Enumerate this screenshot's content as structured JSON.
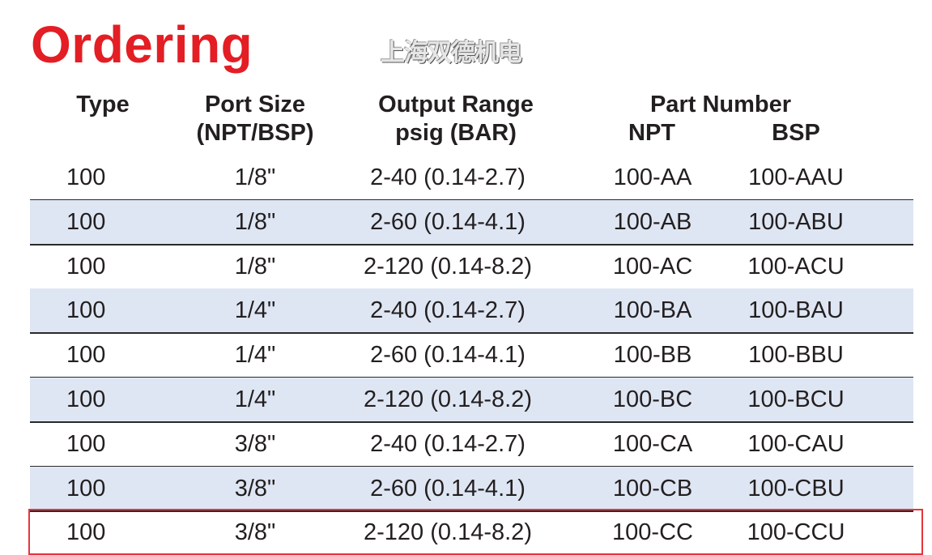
{
  "title": "Ordering",
  "headers": {
    "type": "Type",
    "port_size": "Port Size",
    "port_size_sub": "(NPT/BSP)",
    "output_range": "Output Range",
    "output_range_sub": "psig (BAR)",
    "part_number": "Part Number",
    "npt": "NPT",
    "bsp": "BSP"
  },
  "rows": [
    [
      "100",
      "1/8\"",
      "2-40 (0.14-2.7)",
      "100-AA",
      "100-AAU"
    ],
    [
      "100",
      "1/8\"",
      "2-60 (0.14-4.1)",
      "100-AB",
      "100-ABU"
    ],
    [
      "100",
      "1/8\"",
      "2-120 (0.14-8.2)",
      "100-AC",
      "100-ACU"
    ],
    [
      "100",
      "1/4\"",
      "2-40 (0.14-2.7)",
      "100-BA",
      "100-BAU"
    ],
    [
      "100",
      "1/4\"",
      "2-60 (0.14-4.1)",
      "100-BB",
      "100-BBU"
    ],
    [
      "100",
      "1/4\"",
      "2-120 (0.14-8.2)",
      "100-BC",
      "100-BCU"
    ],
    [
      "100",
      "3/8\"",
      "2-40 (0.14-2.7)",
      "100-CA",
      "100-CAU"
    ],
    [
      "100",
      "3/8\"",
      "2-60 (0.14-4.1)",
      "100-CB",
      "100-CBU"
    ],
    [
      "100",
      "3/8\"",
      "2-120 (0.14-8.2)",
      "100-CC",
      "100-CCU"
    ]
  ],
  "highlighted_row": 8,
  "watermark": "上海双德机电",
  "colors": {
    "title": "#e31e24",
    "alt_row": "#dfe6f3",
    "highlight": "#e8343c"
  }
}
